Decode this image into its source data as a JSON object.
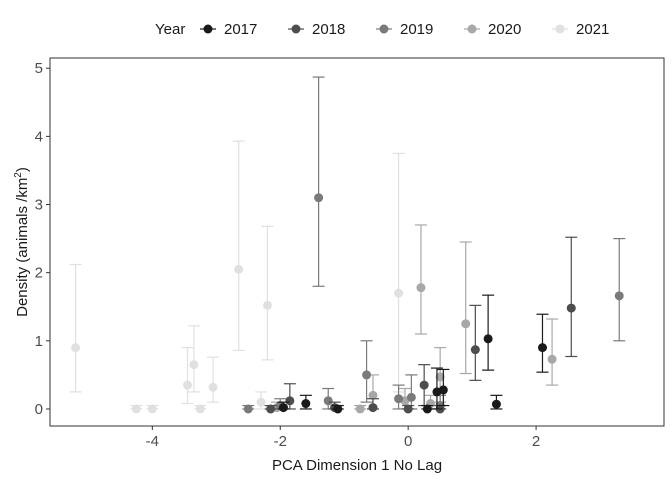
{
  "chart_data": {
    "type": "scatter",
    "subtype": "point-with-error-bars",
    "xlabel": "PCA Dimension 1 No Lag",
    "ylabel_main": "Density (animals /km",
    "ylabel_sup": "2",
    "ylabel_tail": ")",
    "xlim": [
      -5.6,
      4.0
    ],
    "ylim": [
      -0.25,
      5.15
    ],
    "xticks": [
      -4,
      -2,
      0,
      2
    ],
    "xtick_labels": [
      "-4",
      "-2",
      "0",
      "2"
    ],
    "yticks": [
      0,
      1,
      2,
      3,
      4,
      5
    ],
    "ytick_labels": [
      "0",
      "1",
      "2",
      "3",
      "4",
      "5"
    ],
    "grid": false,
    "legend": {
      "title": "Year",
      "placement": "top",
      "entries": [
        "2017",
        "2018",
        "2019",
        "2020",
        "2021"
      ]
    },
    "colors": {
      "2017": "#1a1a1a",
      "2018": "#4d4d4d",
      "2019": "#7a7a7a",
      "2020": "#a8a8a8",
      "2021": "#e0e0e0"
    },
    "series": [
      {
        "name": "2017",
        "points": [
          {
            "x": -1.95,
            "y": 0.02,
            "lo": 0.0,
            "hi": 0.1
          },
          {
            "x": -1.6,
            "y": 0.08,
            "lo": 0.0,
            "hi": 0.2
          },
          {
            "x": -1.1,
            "y": 0.0,
            "lo": 0.0,
            "hi": 0.05
          },
          {
            "x": 0.3,
            "y": 0.0,
            "lo": 0.0,
            "hi": 0.05
          },
          {
            "x": 0.45,
            "y": 0.25,
            "lo": 0.0,
            "hi": 0.6
          },
          {
            "x": 0.55,
            "y": 0.28,
            "lo": 0.05,
            "hi": 0.58
          },
          {
            "x": 1.25,
            "y": 1.03,
            "lo": 0.57,
            "hi": 1.67
          },
          {
            "x": 1.38,
            "y": 0.07,
            "lo": 0.0,
            "hi": 0.2
          },
          {
            "x": 2.1,
            "y": 0.9,
            "lo": 0.54,
            "hi": 1.39
          }
        ]
      },
      {
        "name": "2018",
        "points": [
          {
            "x": -2.15,
            "y": 0.0,
            "lo": 0.0,
            "hi": 0.05
          },
          {
            "x": -1.85,
            "y": 0.12,
            "lo": 0.0,
            "hi": 0.37
          },
          {
            "x": -1.15,
            "y": 0.02,
            "lo": 0.0,
            "hi": 0.1
          },
          {
            "x": -0.55,
            "y": 0.02,
            "lo": 0.0,
            "hi": 0.15
          },
          {
            "x": 0.0,
            "y": 0.0,
            "lo": 0.0,
            "hi": 0.05
          },
          {
            "x": 0.25,
            "y": 0.35,
            "lo": 0.05,
            "hi": 0.65
          },
          {
            "x": 0.5,
            "y": 0.0,
            "lo": 0.0,
            "hi": 0.05
          },
          {
            "x": 1.05,
            "y": 0.87,
            "lo": 0.42,
            "hi": 1.52
          },
          {
            "x": 2.55,
            "y": 1.48,
            "lo": 0.77,
            "hi": 2.52
          }
        ]
      },
      {
        "name": "2019",
        "points": [
          {
            "x": -2.5,
            "y": 0.0,
            "lo": 0.0,
            "hi": 0.05
          },
          {
            "x": -2.0,
            "y": 0.05,
            "lo": 0.0,
            "hi": 0.15
          },
          {
            "x": -1.4,
            "y": 3.1,
            "lo": 1.8,
            "hi": 4.87
          },
          {
            "x": -1.25,
            "y": 0.12,
            "lo": 0.0,
            "hi": 0.3
          },
          {
            "x": -0.65,
            "y": 0.5,
            "lo": 0.1,
            "hi": 1.0
          },
          {
            "x": -0.15,
            "y": 0.15,
            "lo": 0.0,
            "hi": 0.35
          },
          {
            "x": 0.05,
            "y": 0.17,
            "lo": 0.0,
            "hi": 0.5
          },
          {
            "x": 0.5,
            "y": 0.05,
            "lo": 0.0,
            "hi": 0.2
          },
          {
            "x": 3.3,
            "y": 1.66,
            "lo": 1.0,
            "hi": 2.5
          }
        ]
      },
      {
        "name": "2020",
        "points": [
          {
            "x": -2.05,
            "y": 0.02,
            "lo": 0.0,
            "hi": 0.1
          },
          {
            "x": -0.75,
            "y": 0.0,
            "lo": 0.0,
            "hi": 0.05
          },
          {
            "x": -0.55,
            "y": 0.2,
            "lo": 0.0,
            "hi": 0.5
          },
          {
            "x": -0.05,
            "y": 0.12,
            "lo": 0.0,
            "hi": 0.3
          },
          {
            "x": 0.2,
            "y": 1.78,
            "lo": 1.1,
            "hi": 2.7
          },
          {
            "x": 0.35,
            "y": 0.08,
            "lo": 0.0,
            "hi": 0.2
          },
          {
            "x": 0.5,
            "y": 0.47,
            "lo": 0.1,
            "hi": 0.9
          },
          {
            "x": 0.9,
            "y": 1.25,
            "lo": 0.52,
            "hi": 2.45
          },
          {
            "x": 2.25,
            "y": 0.73,
            "lo": 0.35,
            "hi": 1.32
          }
        ]
      },
      {
        "name": "2021",
        "points": [
          {
            "x": -5.2,
            "y": 0.9,
            "lo": 0.25,
            "hi": 2.12
          },
          {
            "x": -4.25,
            "y": 0.0,
            "lo": 0.0,
            "hi": 0.05
          },
          {
            "x": -4.0,
            "y": 0.0,
            "lo": 0.0,
            "hi": 0.05
          },
          {
            "x": -3.45,
            "y": 0.35,
            "lo": 0.08,
            "hi": 0.9
          },
          {
            "x": -3.35,
            "y": 0.65,
            "lo": 0.25,
            "hi": 1.22
          },
          {
            "x": -3.25,
            "y": 0.0,
            "lo": 0.0,
            "hi": 0.05
          },
          {
            "x": -3.05,
            "y": 0.32,
            "lo": 0.1,
            "hi": 0.76
          },
          {
            "x": -2.65,
            "y": 2.05,
            "lo": 0.86,
            "hi": 3.93
          },
          {
            "x": -2.3,
            "y": 0.1,
            "lo": 0.0,
            "hi": 0.25
          },
          {
            "x": -2.2,
            "y": 1.52,
            "lo": 0.72,
            "hi": 2.68
          },
          {
            "x": -0.75,
            "y": 0.0,
            "lo": 0.0,
            "hi": 0.05
          },
          {
            "x": -0.15,
            "y": 1.7,
            "lo": 0.25,
            "hi": 3.75
          }
        ]
      }
    ]
  }
}
